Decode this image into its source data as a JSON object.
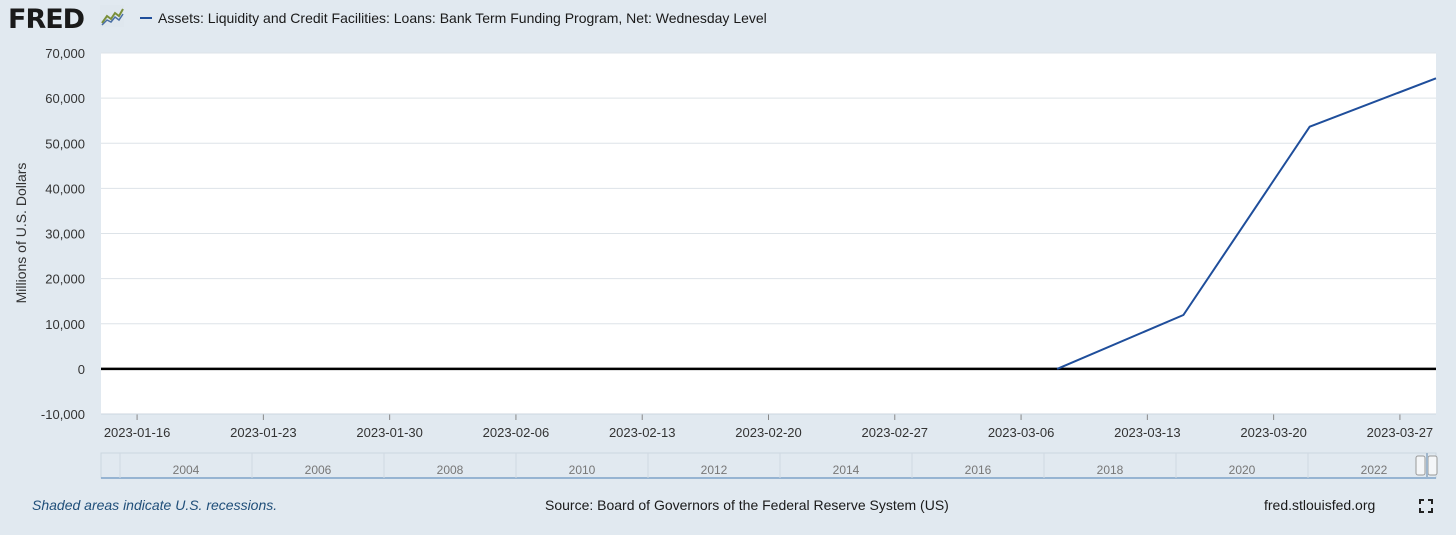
{
  "header": {
    "logo_text": "FRED",
    "logo_icon": "fred-chart-icon"
  },
  "chart_data": {
    "type": "line",
    "series": [
      {
        "name": "Assets: Liquidity and Credit Facilities: Loans: Bank Term Funding Program, Net: Wednesday Level",
        "color": "#1f4e9b",
        "points": [
          {
            "x": "2023-03-08",
            "y": 0
          },
          {
            "x": "2023-03-15",
            "y": 11943
          },
          {
            "x": "2023-03-22",
            "y": 53669
          },
          {
            "x": "2023-03-29",
            "y": 64403
          }
        ]
      }
    ],
    "ylabel": "Millions of U.S. Dollars",
    "ylim": [
      -10000,
      70000
    ],
    "y_ticks": [
      "70,000",
      "60,000",
      "50,000",
      "40,000",
      "30,000",
      "20,000",
      "10,000",
      "0",
      "-10,000"
    ],
    "y_tick_values": [
      70000,
      60000,
      50000,
      40000,
      30000,
      20000,
      10000,
      0,
      -10000
    ],
    "x_ticks": [
      "2023-01-16",
      "2023-01-23",
      "2023-01-30",
      "2023-02-06",
      "2023-02-13",
      "2023-02-20",
      "2023-02-27",
      "2023-03-06",
      "2023-03-13",
      "2023-03-20",
      "2023-03-27"
    ],
    "xlim": [
      "2023-01-14",
      "2023-03-29"
    ],
    "grid": true,
    "zero_line": true,
    "navigator_years": [
      "2004",
      "2006",
      "2008",
      "2010",
      "2012",
      "2014",
      "2016",
      "2018",
      "2020",
      "2022"
    ]
  },
  "footer": {
    "recession_note": "Shaded areas indicate U.S. recessions.",
    "source": "Source: Board of Governors of the Federal Reserve System (US)",
    "site": "fred.stlouisfed.org",
    "fullscreen_icon": "fullscreen-icon"
  },
  "colors": {
    "background": "#e1e9f0",
    "plot_background": "#ffffff",
    "line": "#1f4e9b",
    "footer_note": "#1f4e79"
  }
}
